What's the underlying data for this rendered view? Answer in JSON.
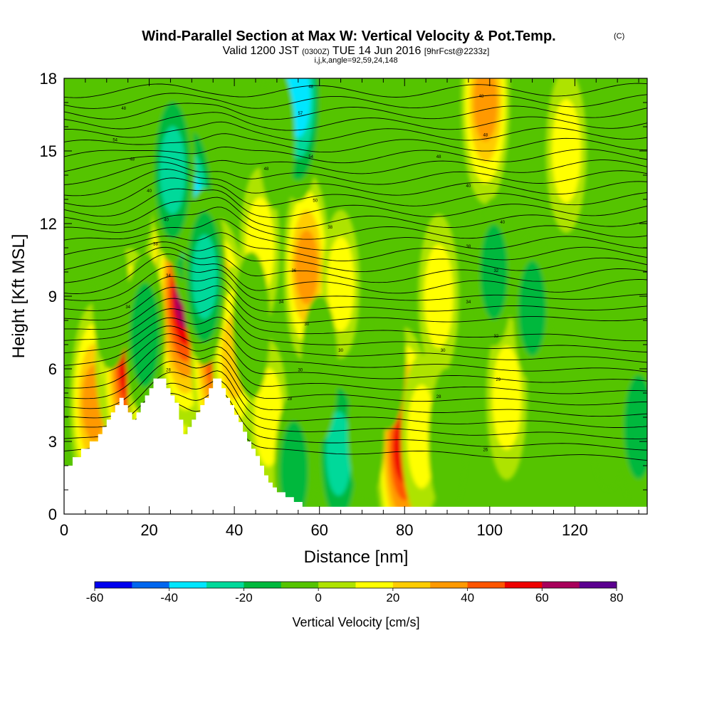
{
  "chart_data": {
    "type": "heatmap",
    "title": "Wind-Parallel Section at Max W: Vertical Velocity & Pot.Temp.",
    "title_mark": "(C)",
    "subtitle": {
      "valid": "Valid 1200 JST",
      "utc": "(0300Z)",
      "date": "TUE 14 Jun 2016",
      "forecast": "[9hrFcst@2233z]"
    },
    "subtitle2": "i,j,k,angle=92,59,24,148",
    "xlabel": "Distance [nm]",
    "ylabel": "Height [Kft MSL]",
    "xlim": [
      0,
      137
    ],
    "ylim": [
      0,
      18
    ],
    "xticks": [
      0,
      20,
      40,
      60,
      80,
      100,
      120
    ],
    "yticks": [
      0,
      3,
      6,
      9,
      12,
      15,
      18
    ],
    "colorbar": {
      "title": "Vertical Velocity [cm/s]",
      "tick_values": [
        -60,
        -40,
        -20,
        0,
        20,
        40,
        60,
        80
      ],
      "tick_labels": [
        "-60",
        "-40",
        "-20",
        "0",
        "20",
        "40",
        "60",
        "80"
      ],
      "colors": [
        "#0000ee",
        "#0066ee",
        "#00e6ff",
        "#00d99a",
        "#00b83d",
        "#55c400",
        "#aee300",
        "#ffff00",
        "#ffcc00",
        "#ff9900",
        "#ff5500",
        "#ee0000",
        "#a8005a",
        "#5b0090"
      ]
    },
    "terrain_profile": [
      [
        0,
        2.0
      ],
      [
        2,
        2.0
      ],
      [
        2,
        2.35
      ],
      [
        4,
        2.35
      ],
      [
        4,
        2.7
      ],
      [
        6,
        2.7
      ],
      [
        6,
        3.0
      ],
      [
        8,
        3.0
      ],
      [
        8,
        3.3
      ],
      [
        9,
        3.3
      ],
      [
        9,
        3.6
      ],
      [
        10,
        3.6
      ],
      [
        10,
        3.9
      ],
      [
        11,
        3.9
      ],
      [
        11,
        4.2
      ],
      [
        12,
        4.2
      ],
      [
        12,
        4.5
      ],
      [
        13,
        4.5
      ],
      [
        13,
        4.8
      ],
      [
        14,
        4.8
      ],
      [
        14,
        4.5
      ],
      [
        15,
        4.5
      ],
      [
        15,
        4.2
      ],
      [
        16,
        4.2
      ],
      [
        16,
        3.9
      ],
      [
        17,
        3.9
      ],
      [
        17,
        4.2
      ],
      [
        18,
        4.2
      ],
      [
        18,
        4.6
      ],
      [
        19,
        4.6
      ],
      [
        19,
        4.9
      ],
      [
        20,
        4.9
      ],
      [
        20,
        5.2
      ],
      [
        21,
        5.2
      ],
      [
        21,
        5.6
      ],
      [
        24,
        5.6
      ],
      [
        24,
        5.2
      ],
      [
        25,
        5.2
      ],
      [
        25,
        4.9
      ],
      [
        26,
        4.9
      ],
      [
        26,
        4.6
      ],
      [
        27,
        4.6
      ],
      [
        27,
        3.9
      ],
      [
        28,
        3.9
      ],
      [
        28,
        3.3
      ],
      [
        29,
        3.3
      ],
      [
        29,
        3.6
      ],
      [
        30,
        3.6
      ],
      [
        30,
        3.9
      ],
      [
        31,
        3.9
      ],
      [
        31,
        4.2
      ],
      [
        32,
        4.2
      ],
      [
        32,
        4.5
      ],
      [
        33,
        4.5
      ],
      [
        33,
        4.8
      ],
      [
        34,
        4.8
      ],
      [
        34,
        5.2
      ],
      [
        35,
        5.2
      ],
      [
        35,
        5.6
      ],
      [
        37,
        5.6
      ],
      [
        37,
        5.2
      ],
      [
        38,
        5.2
      ],
      [
        38,
        4.8
      ],
      [
        39,
        4.8
      ],
      [
        39,
        4.5
      ],
      [
        40,
        4.5
      ],
      [
        40,
        4.1
      ],
      [
        41,
        4.1
      ],
      [
        41,
        3.8
      ],
      [
        42,
        3.8
      ],
      [
        42,
        3.4
      ],
      [
        43,
        3.4
      ],
      [
        43,
        3.0
      ],
      [
        44,
        3.0
      ],
      [
        44,
        2.7
      ],
      [
        45,
        2.7
      ],
      [
        45,
        2.4
      ],
      [
        46,
        2.4
      ],
      [
        46,
        2.0
      ],
      [
        47,
        2.0
      ],
      [
        47,
        1.6
      ],
      [
        48,
        1.6
      ],
      [
        48,
        1.3
      ],
      [
        49,
        1.3
      ],
      [
        49,
        1.1
      ],
      [
        50,
        1.1
      ],
      [
        50,
        0.9
      ],
      [
        52,
        0.9
      ],
      [
        52,
        0.7
      ],
      [
        54,
        0.7
      ],
      [
        54,
        0.5
      ],
      [
        56,
        0.5
      ],
      [
        56,
        0.3
      ],
      [
        137,
        0.3
      ],
      [
        137,
        0.0
      ],
      [
        0,
        0.0
      ]
    ],
    "vertical_velocity_cells": [
      {
        "x": 7,
        "z": 4.6,
        "w": 38
      },
      {
        "x": 12,
        "z": 6.4,
        "w": 20
      },
      {
        "x": 15.5,
        "z": 6.1,
        "w": 55
      },
      {
        "x": 20.5,
        "z": 5.8,
        "w": 40
      },
      {
        "x": 25,
        "z": 7.5,
        "w": 70
      },
      {
        "x": 27,
        "z": 9.9,
        "w": 68
      },
      {
        "x": 28.5,
        "z": 9.0,
        "w": 66
      },
      {
        "x": 36.5,
        "z": 7.0,
        "w": 62
      },
      {
        "x": 40,
        "z": 6.5,
        "w": 30
      },
      {
        "x": 46,
        "z": 11.0,
        "w": 20
      },
      {
        "x": 57,
        "z": 10.2,
        "w": 35
      },
      {
        "x": 65,
        "z": 9.5,
        "w": 15
      },
      {
        "x": 80,
        "z": 2.7,
        "w": 58
      },
      {
        "x": 84,
        "z": 3.2,
        "w": 22
      },
      {
        "x": 88,
        "z": 9.0,
        "w": 22
      },
      {
        "x": 99,
        "z": 17.0,
        "w": 40
      },
      {
        "x": 104,
        "z": 4.8,
        "w": 22
      },
      {
        "x": 118,
        "z": 15.0,
        "w": 22
      },
      {
        "x": 48,
        "z": 4.0,
        "w": 18
      },
      {
        "x": 30,
        "z": 12.5,
        "w": -38
      },
      {
        "x": 25.5,
        "z": 14.2,
        "w": -32
      },
      {
        "x": 33,
        "z": 9.8,
        "w": -28
      },
      {
        "x": 55,
        "z": 17.2,
        "w": -42
      },
      {
        "x": 64.5,
        "z": 2.5,
        "w": -28
      },
      {
        "x": 54,
        "z": 1.8,
        "w": -18
      },
      {
        "x": 60,
        "z": 6.0,
        "w": -14
      },
      {
        "x": 71,
        "z": 3.5,
        "w": -14
      },
      {
        "x": 76,
        "z": 6.5,
        "w": -14
      },
      {
        "x": 90,
        "z": 3.0,
        "w": -14
      },
      {
        "x": 101,
        "z": 10.0,
        "w": -15
      },
      {
        "x": 110,
        "z": 8.5,
        "w": -15
      },
      {
        "x": 128,
        "z": 4.0,
        "w": -13
      },
      {
        "x": 135,
        "z": 3.6,
        "w": -22
      },
      {
        "x": 19,
        "z": 7.4,
        "w": -22
      },
      {
        "x": 11,
        "z": 9.0,
        "w": -14
      },
      {
        "x": 44,
        "z": 7.8,
        "w": -14
      },
      {
        "x": 50,
        "z": 15.5,
        "w": -12
      }
    ],
    "theta_labels": [
      {
        "x": 14,
        "z": 16.7,
        "text": "48"
      },
      {
        "x": 12,
        "z": 15.4,
        "text": "54"
      },
      {
        "x": 16,
        "z": 14.6,
        "text": "48"
      },
      {
        "x": 20,
        "z": 13.3,
        "text": "40"
      },
      {
        "x": 24,
        "z": 12.1,
        "text": "40"
      },
      {
        "x": 21.5,
        "z": 11.1,
        "text": "38"
      },
      {
        "x": 24.5,
        "z": 9.8,
        "text": "34"
      },
      {
        "x": 15,
        "z": 8.5,
        "text": "34"
      },
      {
        "x": 24.5,
        "z": 5.9,
        "text": "28"
      },
      {
        "x": 58,
        "z": 17.6,
        "text": "48"
      },
      {
        "x": 55.5,
        "z": 16.5,
        "text": "57"
      },
      {
        "x": 58,
        "z": 14.7,
        "text": "54"
      },
      {
        "x": 47.5,
        "z": 14.2,
        "text": "48"
      },
      {
        "x": 59,
        "z": 12.9,
        "text": "50"
      },
      {
        "x": 62.5,
        "z": 11.8,
        "text": "38"
      },
      {
        "x": 54,
        "z": 10.0,
        "text": "36"
      },
      {
        "x": 51,
        "z": 8.7,
        "text": "34"
      },
      {
        "x": 57,
        "z": 7.8,
        "text": "30"
      },
      {
        "x": 65,
        "z": 6.7,
        "text": "30"
      },
      {
        "x": 55.5,
        "z": 5.9,
        "text": "30"
      },
      {
        "x": 53,
        "z": 4.7,
        "text": "28"
      },
      {
        "x": 98,
        "z": 17.2,
        "text": "48"
      },
      {
        "x": 99,
        "z": 15.6,
        "text": "48"
      },
      {
        "x": 88,
        "z": 14.7,
        "text": "48"
      },
      {
        "x": 95,
        "z": 13.5,
        "text": "40"
      },
      {
        "x": 103,
        "z": 12.0,
        "text": "40"
      },
      {
        "x": 95,
        "z": 11.0,
        "text": "38"
      },
      {
        "x": 101.5,
        "z": 10.0,
        "text": "32"
      },
      {
        "x": 95,
        "z": 8.7,
        "text": "34"
      },
      {
        "x": 101.5,
        "z": 7.3,
        "text": "32"
      },
      {
        "x": 89,
        "z": 6.7,
        "text": "30"
      },
      {
        "x": 102,
        "z": 5.5,
        "text": "29"
      },
      {
        "x": 88,
        "z": 4.8,
        "text": "28"
      },
      {
        "x": 99,
        "z": 2.6,
        "text": "26"
      }
    ]
  }
}
